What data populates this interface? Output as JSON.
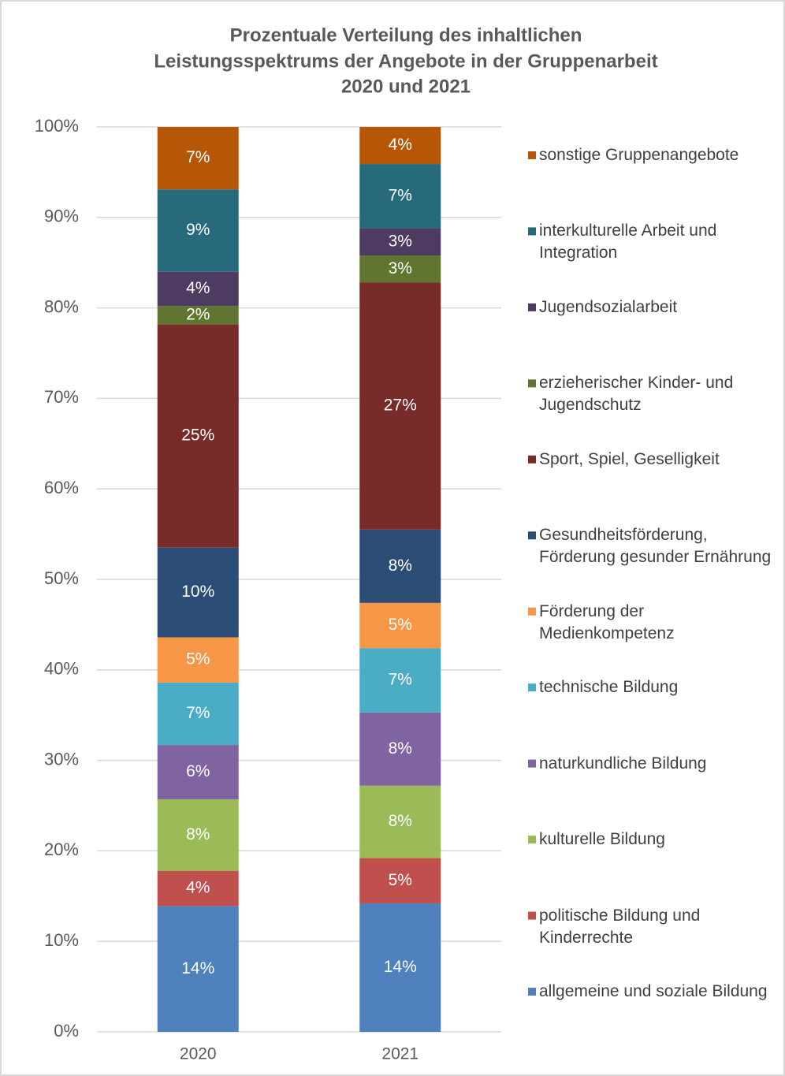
{
  "chart_data": {
    "type": "stacked_bar",
    "title": [
      "Prozentuale Verteilung des inhaltlichen",
      "Leistungsspektrums der Angebote in der Gruppenarbeit",
      "2020 und 2021"
    ],
    "categories": [
      "2020",
      "2021"
    ],
    "ylim": [
      0,
      100
    ],
    "yticks": [
      {
        "value": 0,
        "label": "0%"
      },
      {
        "value": 10,
        "label": "10%"
      },
      {
        "value": 20,
        "label": "20%"
      },
      {
        "value": 30,
        "label": "30%"
      },
      {
        "value": 40,
        "label": "40%"
      },
      {
        "value": 50,
        "label": "50%"
      },
      {
        "value": 60,
        "label": "60%"
      },
      {
        "value": 70,
        "label": "70%"
      },
      {
        "value": 80,
        "label": "80%"
      },
      {
        "value": 90,
        "label": "90%"
      },
      {
        "value": 100,
        "label": "100%"
      }
    ],
    "grid": true,
    "legend": "right",
    "series": [
      {
        "name": "allgemeine und soziale Bildung",
        "color": "#4f81bd",
        "values": [
          13.9,
          14.2
        ],
        "value_labels": [
          "14%",
          "14%"
        ]
      },
      {
        "name": "politische Bildung und Kinderrechte",
        "color": "#c0504d",
        "values": [
          3.9,
          5.0
        ],
        "value_labels": [
          "4%",
          "5%"
        ]
      },
      {
        "name": "kulturelle Bildung",
        "color": "#9bbb59",
        "values": [
          7.9,
          8.0
        ],
        "value_labels": [
          "8%",
          "8%"
        ]
      },
      {
        "name": "naturkundliche Bildung",
        "color": "#8064a2",
        "values": [
          6.0,
          8.1
        ],
        "value_labels": [
          "6%",
          "8%"
        ]
      },
      {
        "name": "technische Bildung",
        "color": "#4bacc6",
        "values": [
          6.9,
          7.1
        ],
        "value_labels": [
          "7%",
          "7%"
        ]
      },
      {
        "name": "Förderung der Medienkompetenz",
        "color": "#f79646",
        "values": [
          5.0,
          5.0
        ],
        "value_labels": [
          "5%",
          "5%"
        ]
      },
      {
        "name": "Gesundheitsförderung, Förderung gesunder Ernährung",
        "color": "#2c4d75",
        "values": [
          9.9,
          8.1
        ],
        "value_labels": [
          "10%",
          "8%"
        ]
      },
      {
        "name": "Sport, Spiel, Geselligkeit",
        "color": "#772c2a",
        "values": [
          24.7,
          27.3
        ],
        "value_labels": [
          "25%",
          "27%"
        ]
      },
      {
        "name": "erzieherischer Kinder- und Jugendschutz",
        "color": "#5f7530",
        "values": [
          2.0,
          3.0
        ],
        "value_labels": [
          "2%",
          "3%"
        ]
      },
      {
        "name": "Jugendsozialarbeit",
        "color": "#4d3b62",
        "values": [
          3.8,
          3.0
        ],
        "value_labels": [
          "4%",
          "3%"
        ]
      },
      {
        "name": "interkulturelle Arbeit und Integration",
        "color": "#276a7c",
        "values": [
          9.1,
          7.1
        ],
        "value_labels": [
          "9%",
          "7%"
        ]
      },
      {
        "name": "sonstige Gruppenangebote",
        "color": "#b65708",
        "values": [
          6.9,
          4.1
        ],
        "value_labels": [
          "7%",
          "4%"
        ]
      }
    ]
  }
}
